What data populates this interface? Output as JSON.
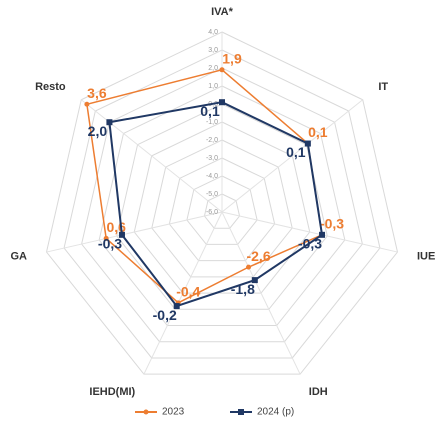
{
  "chart_data": {
    "type": "radar",
    "categories": [
      "IVA*",
      "IT",
      "IUE",
      "IDH",
      "IEHD(MI)",
      "GA",
      "Resto"
    ],
    "rlim": [
      -6,
      4
    ],
    "rticks": [
      {
        "value": 4,
        "label": "4,0"
      },
      {
        "value": 3,
        "label": "3,0"
      },
      {
        "value": 2,
        "label": "2,0"
      },
      {
        "value": 1,
        "label": "1,0"
      },
      {
        "value": 0,
        "label": "0,0"
      },
      {
        "value": -1,
        "label": "-1,0"
      },
      {
        "value": -2,
        "label": "-2,0"
      },
      {
        "value": -3,
        "label": "-3,0"
      },
      {
        "value": -4,
        "label": "-4,0"
      },
      {
        "value": -5,
        "label": "-5,0"
      },
      {
        "value": -6,
        "label": "-6,0"
      }
    ],
    "grid": true,
    "legend": "bottom",
    "series": [
      {
        "name": "2023",
        "color": "#ED7D31",
        "values": [
          1.9,
          0.1,
          -0.3,
          -2.6,
          -0.4,
          0.6,
          3.6
        ],
        "value_labels": [
          "1,9",
          "0,1",
          "-0,3",
          "-2,6",
          "-0,4",
          "0,6",
          "3,6"
        ]
      },
      {
        "name": "2024 (p)",
        "color": "#203864",
        "values": [
          0.1,
          0.1,
          -0.3,
          -1.8,
          -0.2,
          -0.3,
          2.0
        ],
        "value_labels": [
          "0,1",
          "0,1",
          "-0,3",
          "-1,8",
          "-0,2",
          "-0,3",
          "2,0"
        ]
      }
    ]
  }
}
